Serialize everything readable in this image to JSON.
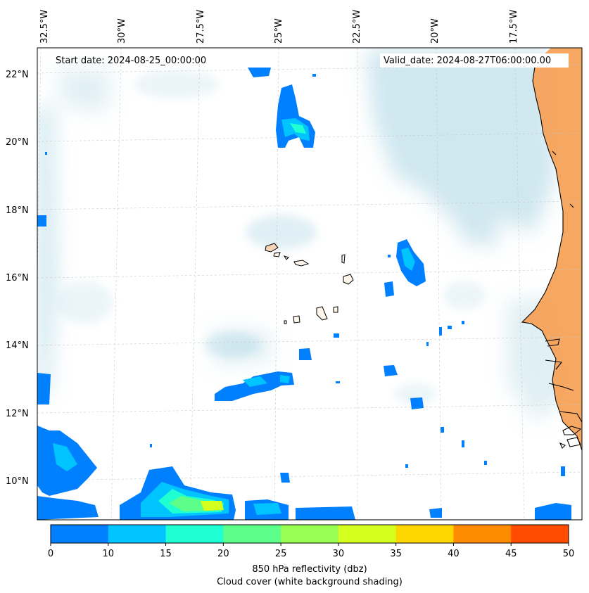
{
  "map": {
    "start_date": "Start date: 2024-08-25_00:00:00",
    "valid_date": "Valid_date: 2024-08-27T06:00:00.00",
    "lon_labels": [
      "32.5°W",
      "30°W",
      "27.5°W",
      "25°W",
      "22.5°W",
      "20°W",
      "17.5°W"
    ],
    "lat_labels": [
      "22°N",
      "20°N",
      "18°N",
      "16°N",
      "14°N",
      "12°N",
      "10°N"
    ],
    "places": [
      "Cabo Verde islands",
      "West African coast"
    ]
  },
  "colorbar": {
    "ticks": [
      "0",
      "10",
      "15",
      "20",
      "25",
      "30",
      "35",
      "40",
      "45",
      "50"
    ],
    "colors": [
      "#0080ff",
      "#00c4ff",
      "#1effd2",
      "#5cff8a",
      "#98ff52",
      "#d4ff1e",
      "#ffd700",
      "#ff8c00",
      "#ff4c00"
    ],
    "label1": "850 hPa reflectivity (dbz)",
    "label2": "Cloud cover (white background shading)"
  },
  "style": {
    "land_color": "#f5a25a",
    "cloud_color": "#a9d4e3",
    "grid_color": "#c8c8c8"
  }
}
